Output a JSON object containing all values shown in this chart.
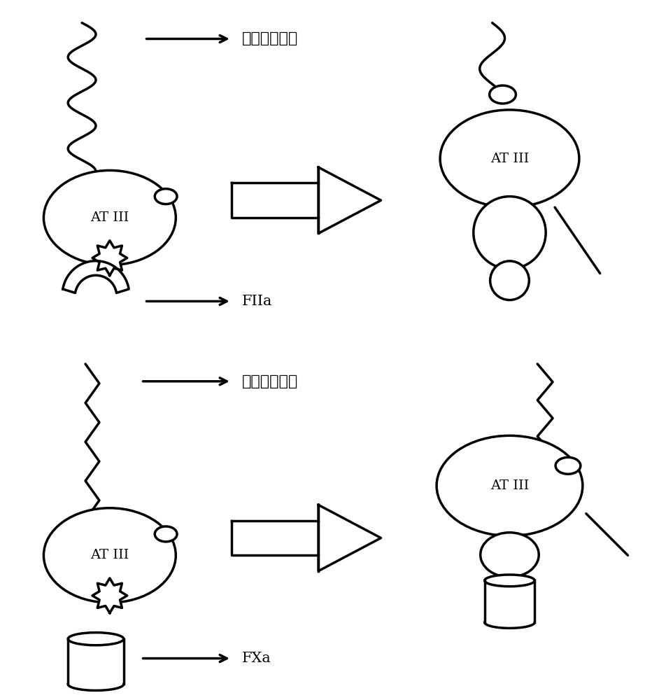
{
  "bg_color": "#ffffff",
  "line_color": "#000000",
  "line_width": 2.5,
  "fig_width": 9.42,
  "fig_height": 10.0,
  "label_long_chain": "长链肝素分子",
  "label_short_chain": "短链肝素分子",
  "label_atiii": "AT III",
  "label_fiia": "FIIa",
  "label_fxa": "FXa"
}
